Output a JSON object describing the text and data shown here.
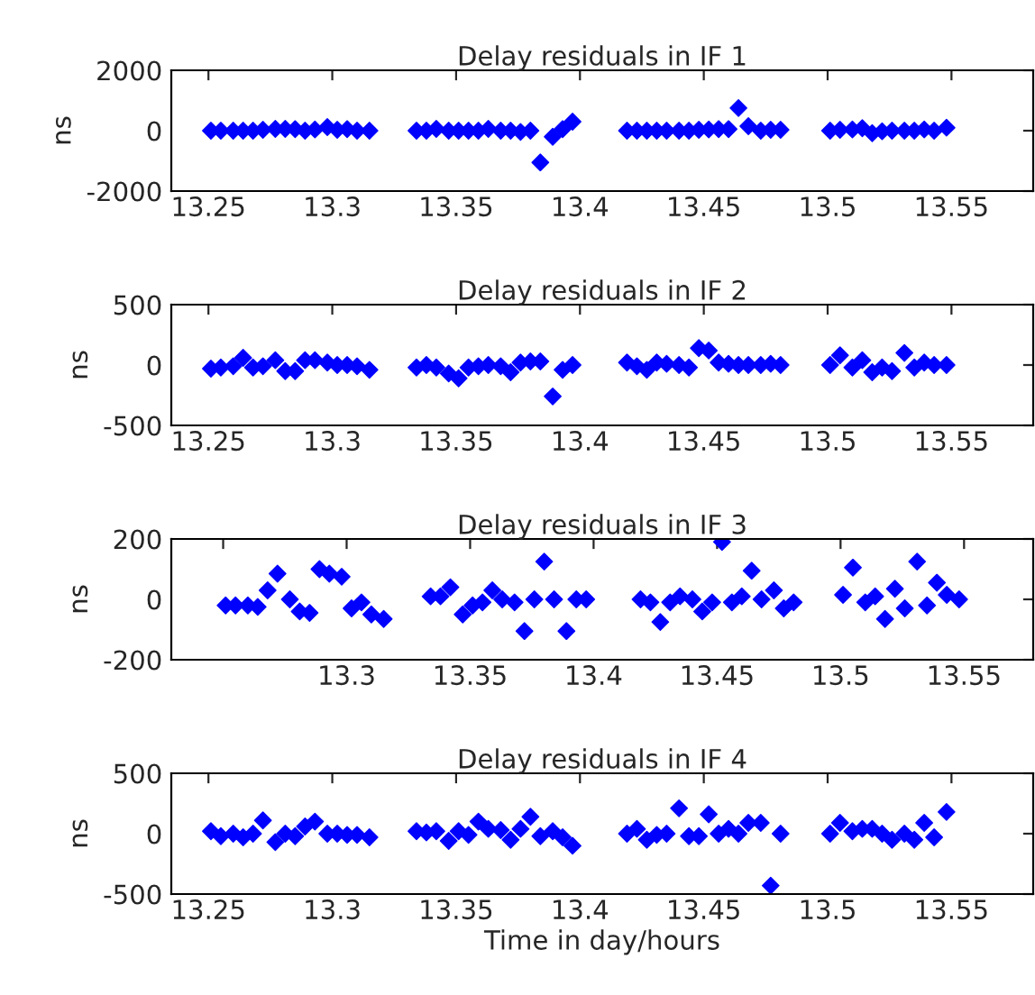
{
  "chart_data": [
    {
      "type": "scatter",
      "title": "Delay residuals in IF 1",
      "ylabel": "ns",
      "marker": "diamond",
      "grid": false,
      "xlim": [
        13.235,
        13.583
      ],
      "xticks": [
        13.25,
        13.3,
        13.35,
        13.4,
        13.45,
        13.5,
        13.55
      ],
      "ylim": [
        -2000,
        2000
      ],
      "yticks": [
        {
          "value": -2000,
          "label": "-2000"
        },
        0,
        2000
      ],
      "series": [
        {
          "color": "#0000ff",
          "x": [
            13.251,
            13.255,
            13.26,
            13.264,
            13.268,
            13.272,
            13.277,
            13.281,
            13.285,
            13.289,
            13.293,
            13.298,
            13.302,
            13.306,
            13.31,
            13.315,
            13.334,
            13.338,
            13.342,
            13.347,
            13.351,
            13.355,
            13.359,
            13.363,
            13.368,
            13.372,
            13.376,
            13.38,
            13.384,
            13.389,
            13.393,
            13.397,
            13.419,
            13.423,
            13.427,
            13.431,
            13.435,
            13.44,
            13.444,
            13.448,
            13.452,
            13.456,
            13.46,
            13.464,
            13.468,
            13.473,
            13.477,
            13.481,
            13.501,
            13.505,
            13.51,
            13.514,
            13.518,
            13.522,
            13.526,
            13.531,
            13.535,
            13.539,
            13.543,
            13.548
          ],
          "values": [
            0,
            0,
            0,
            0,
            0,
            30,
            60,
            60,
            50,
            0,
            40,
            120,
            30,
            50,
            0,
            0,
            0,
            0,
            60,
            0,
            0,
            0,
            0,
            60,
            0,
            0,
            -40,
            0,
            -1050,
            -200,
            50,
            300,
            0,
            0,
            0,
            0,
            0,
            0,
            0,
            30,
            40,
            50,
            50,
            750,
            150,
            0,
            30,
            30,
            0,
            30,
            40,
            80,
            -80,
            -20,
            0,
            0,
            0,
            40,
            0,
            100
          ]
        }
      ]
    },
    {
      "type": "scatter",
      "title": "Delay residuals in IF 2",
      "ylabel": "ns",
      "marker": "diamond",
      "grid": false,
      "xlim": [
        13.235,
        13.583
      ],
      "xticks": [
        13.25,
        13.3,
        13.35,
        13.4,
        13.45,
        13.5,
        13.55
      ],
      "ylim": [
        -500,
        500
      ],
      "yticks": [
        {
          "value": -500,
          "label": "-500"
        },
        0,
        500
      ],
      "series": [
        {
          "color": "#0000ff",
          "x": [
            13.251,
            13.255,
            13.26,
            13.264,
            13.268,
            13.272,
            13.277,
            13.281,
            13.285,
            13.289,
            13.293,
            13.298,
            13.302,
            13.306,
            13.31,
            13.315,
            13.334,
            13.338,
            13.342,
            13.347,
            13.351,
            13.355,
            13.359,
            13.363,
            13.368,
            13.372,
            13.376,
            13.38,
            13.384,
            13.389,
            13.393,
            13.397,
            13.419,
            13.423,
            13.427,
            13.431,
            13.435,
            13.44,
            13.444,
            13.448,
            13.452,
            13.456,
            13.46,
            13.464,
            13.468,
            13.473,
            13.477,
            13.481,
            13.501,
            13.505,
            13.51,
            13.514,
            13.518,
            13.522,
            13.526,
            13.531,
            13.535,
            13.539,
            13.543,
            13.548
          ],
          "values": [
            -30,
            -20,
            -10,
            60,
            -20,
            -10,
            40,
            -50,
            -50,
            40,
            40,
            20,
            0,
            0,
            -10,
            -40,
            -20,
            0,
            -20,
            -70,
            -110,
            -20,
            -10,
            0,
            -10,
            -60,
            20,
            30,
            30,
            -260,
            -40,
            0,
            20,
            -10,
            -40,
            20,
            10,
            0,
            -20,
            140,
            120,
            20,
            10,
            0,
            0,
            0,
            10,
            0,
            0,
            80,
            -20,
            40,
            -60,
            -20,
            -50,
            100,
            -20,
            20,
            0,
            0
          ]
        }
      ]
    },
    {
      "type": "scatter",
      "title": "Delay residuals in IF 3",
      "ylabel": "ns",
      "marker": "diamond",
      "grid": false,
      "xlim": [
        13.229,
        13.578
      ],
      "xticks": [
        {
          "value": 13.25,
          "label": null
        },
        13.3,
        13.35,
        13.4,
        13.45,
        13.5,
        13.55
      ],
      "ylim": [
        -200,
        200
      ],
      "yticks": [
        {
          "value": -200,
          "label": "-200"
        },
        0,
        200
      ],
      "series": [
        {
          "color": "#0000ff",
          "x": [
            13.251,
            13.255,
            13.26,
            13.264,
            13.268,
            13.272,
            13.277,
            13.281,
            13.285,
            13.289,
            13.293,
            13.298,
            13.302,
            13.306,
            13.31,
            13.315,
            13.334,
            13.338,
            13.342,
            13.347,
            13.351,
            13.355,
            13.359,
            13.363,
            13.368,
            13.372,
            13.376,
            13.38,
            13.384,
            13.389,
            13.393,
            13.397,
            13.419,
            13.423,
            13.427,
            13.431,
            13.435,
            13.44,
            13.444,
            13.448,
            13.452,
            13.456,
            13.46,
            13.464,
            13.468,
            13.473,
            13.477,
            13.481,
            13.501,
            13.505,
            13.51,
            13.514,
            13.518,
            13.522,
            13.526,
            13.531,
            13.535,
            13.539,
            13.543,
            13.548
          ],
          "values": [
            -20,
            -20,
            -20,
            -25,
            30,
            85,
            0,
            -40,
            -45,
            100,
            85,
            75,
            -30,
            -10,
            -50,
            -65,
            10,
            10,
            40,
            -50,
            -20,
            -10,
            30,
            0,
            -10,
            -105,
            0,
            125,
            0,
            -105,
            0,
            0,
            0,
            -10,
            -75,
            -10,
            10,
            0,
            -40,
            -10,
            190,
            -10,
            10,
            95,
            0,
            30,
            -30,
            -10,
            15,
            105,
            -10,
            10,
            -65,
            35,
            -30,
            125,
            -20,
            55,
            15,
            0
          ]
        }
      ]
    },
    {
      "type": "scatter",
      "title": "Delay residuals in IF 4",
      "ylabel": "ns",
      "xlabel": "Time in day/hours",
      "marker": "diamond",
      "grid": false,
      "xlim": [
        13.235,
        13.583
      ],
      "xticks": [
        13.25,
        13.3,
        13.35,
        13.4,
        13.45,
        13.5,
        13.55
      ],
      "ylim": [
        -500,
        500
      ],
      "yticks": [
        {
          "value": -500,
          "label": "-500"
        },
        0,
        500
      ],
      "series": [
        {
          "color": "#0000ff",
          "x": [
            13.251,
            13.255,
            13.26,
            13.264,
            13.268,
            13.272,
            13.277,
            13.281,
            13.285,
            13.289,
            13.293,
            13.298,
            13.302,
            13.306,
            13.31,
            13.315,
            13.334,
            13.338,
            13.342,
            13.347,
            13.351,
            13.355,
            13.359,
            13.363,
            13.368,
            13.372,
            13.376,
            13.38,
            13.384,
            13.389,
            13.393,
            13.397,
            13.419,
            13.423,
            13.427,
            13.431,
            13.435,
            13.44,
            13.444,
            13.448,
            13.452,
            13.456,
            13.46,
            13.464,
            13.468,
            13.473,
            13.477,
            13.481,
            13.501,
            13.505,
            13.51,
            13.514,
            13.518,
            13.522,
            13.526,
            13.531,
            13.535,
            13.539,
            13.543,
            13.548
          ],
          "values": [
            20,
            -20,
            0,
            -30,
            0,
            110,
            -70,
            0,
            -20,
            60,
            100,
            0,
            0,
            -10,
            -10,
            -30,
            20,
            10,
            20,
            -60,
            20,
            -10,
            100,
            40,
            30,
            -50,
            40,
            140,
            -20,
            20,
            -30,
            -100,
            0,
            40,
            -50,
            -10,
            0,
            210,
            -20,
            -20,
            160,
            0,
            40,
            0,
            90,
            90,
            -430,
            0,
            0,
            90,
            20,
            40,
            40,
            0,
            -50,
            0,
            -50,
            90,
            -30,
            180
          ]
        }
      ]
    }
  ]
}
